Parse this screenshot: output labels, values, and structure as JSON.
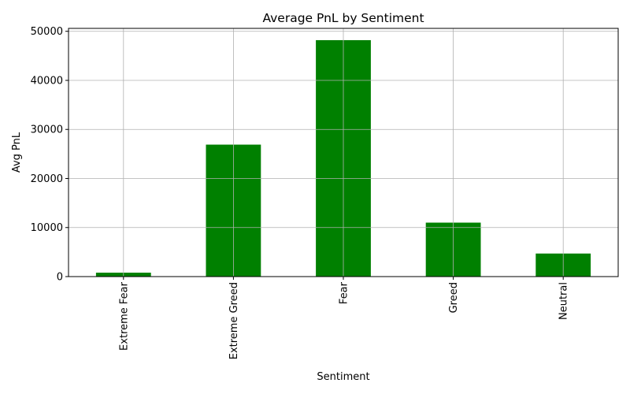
{
  "chart_data": {
    "type": "bar",
    "title": "Average PnL by Sentiment",
    "xlabel": "Sentiment",
    "ylabel": "Avg PnL",
    "categories": [
      "Extreme Fear",
      "Extreme Greed",
      "Fear",
      "Greed",
      "Neutral"
    ],
    "values": [
      800,
      26900,
      48200,
      11000,
      4700
    ],
    "ylim": [
      0,
      50600
    ],
    "yticks": [
      0,
      10000,
      20000,
      30000,
      40000,
      50000
    ],
    "ytick_labels": [
      "0",
      "10000",
      "20000",
      "30000",
      "40000",
      "50000"
    ],
    "bar_color": "#008000",
    "grid": true,
    "legend": "none"
  }
}
